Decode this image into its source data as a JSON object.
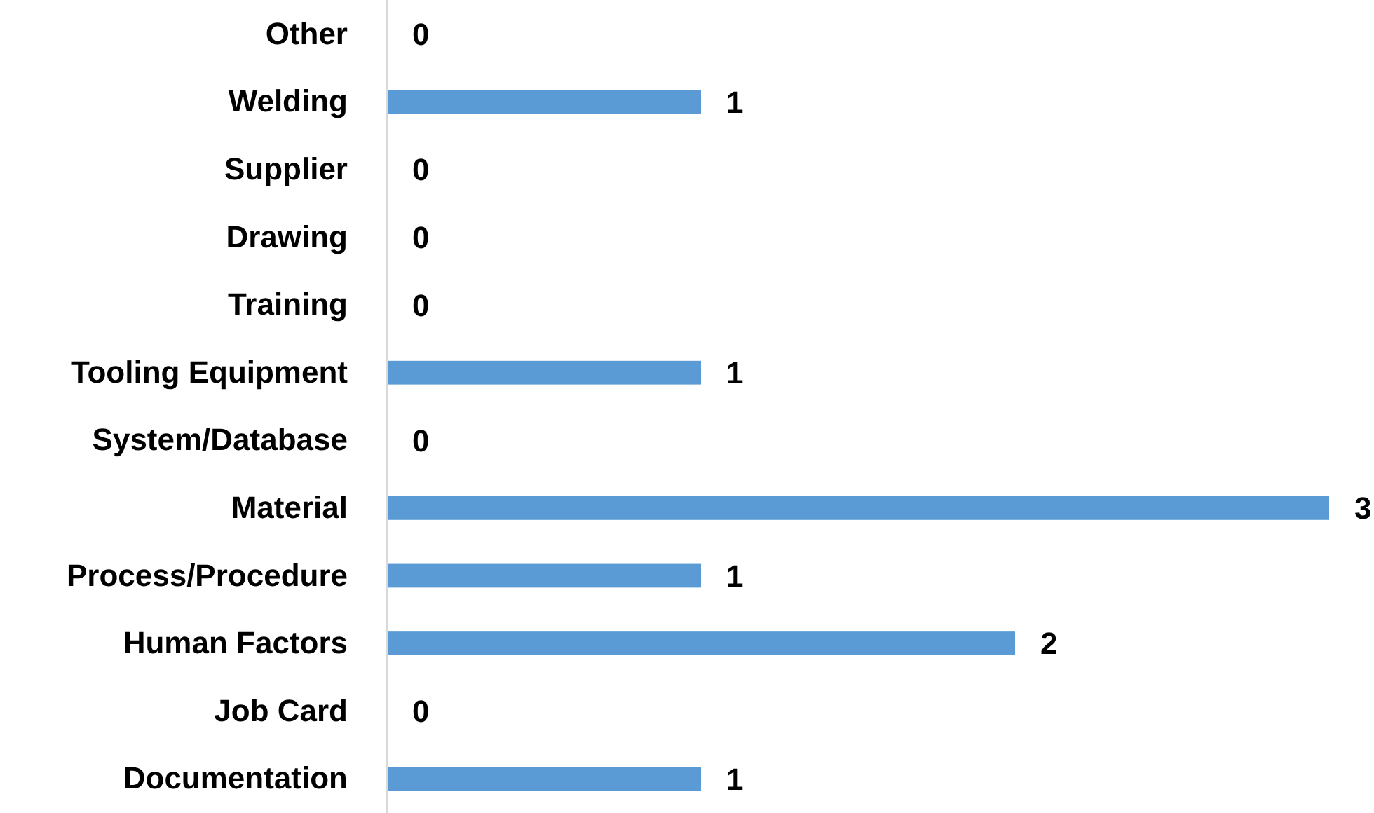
{
  "chart_data": {
    "type": "bar",
    "orientation": "horizontal",
    "categories": [
      "Other",
      "Welding",
      "Supplier",
      "Drawing",
      "Training",
      "Tooling Equipment",
      "System/Database",
      "Material",
      "Process/Procedure",
      "Human Factors",
      "Job Card",
      "Documentation"
    ],
    "values": [
      0,
      1,
      0,
      0,
      0,
      1,
      0,
      3,
      1,
      2,
      0,
      1
    ],
    "color": "#5b9bd5",
    "data_labels": true
  }
}
